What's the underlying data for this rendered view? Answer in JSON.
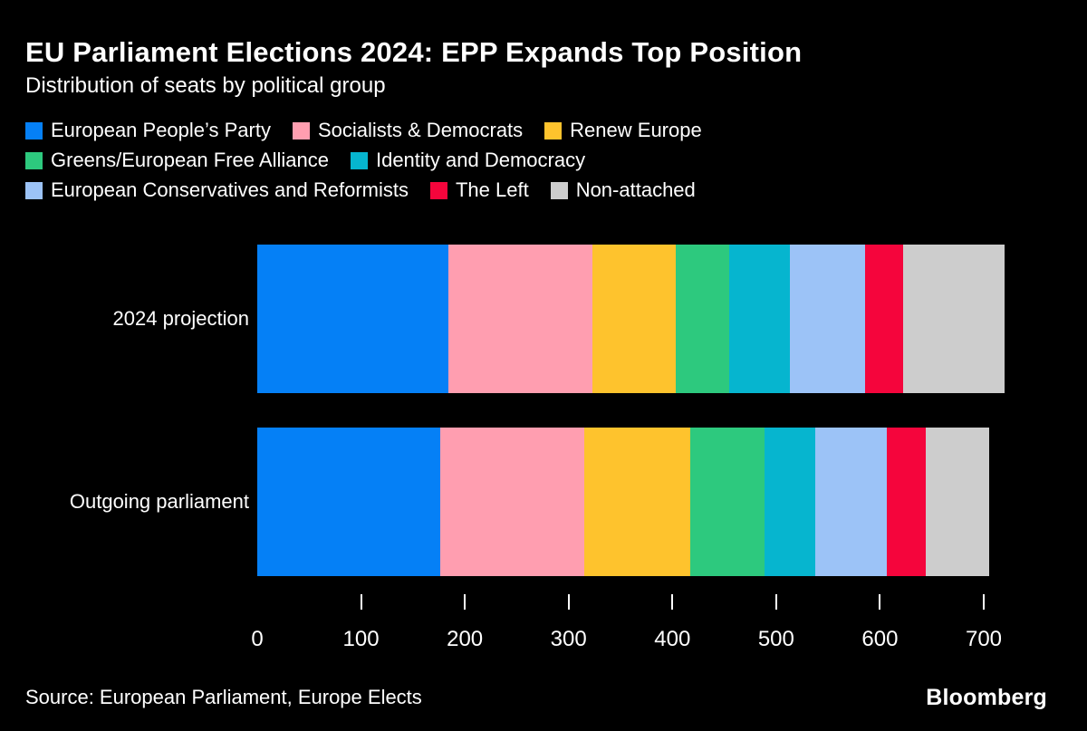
{
  "chart_data": {
    "type": "bar",
    "orientation": "horizontal",
    "stacked": true,
    "title": "EU Parliament Elections 2024: EPP Expands Top Position",
    "subtitle": "Distribution of seats by political group",
    "categories": [
      "2024 projection",
      "Outgoing parliament"
    ],
    "series": [
      {
        "name": "European People’s Party",
        "color": "#0580f6",
        "values": [
          184,
          176
        ]
      },
      {
        "name": "Socialists & Democrats",
        "color": "#ff9eb0",
        "values": [
          139,
          139
        ]
      },
      {
        "name": "Renew Europe",
        "color": "#fec32d",
        "values": [
          80,
          102
        ]
      },
      {
        "name": "Greens/European Free Alliance",
        "color": "#2dc97e",
        "values": [
          52,
          72
        ]
      },
      {
        "name": "Identity and Democracy",
        "color": "#06b5cf",
        "values": [
          58,
          49
        ]
      },
      {
        "name": "European Conservatives and Reformists",
        "color": "#9cc3f7",
        "values": [
          73,
          69
        ]
      },
      {
        "name": "The Left",
        "color": "#f5053c",
        "values": [
          36,
          37
        ]
      },
      {
        "name": "Non-attached",
        "color": "#cdcdcd",
        "values": [
          98,
          61
        ]
      }
    ],
    "totals": [
      720,
      705
    ],
    "x_ticks": [
      0,
      100,
      200,
      300,
      400,
      500,
      600,
      700
    ],
    "xlim": [
      0,
      700
    ],
    "xlabel": "",
    "ylabel": "",
    "legend_position": "top",
    "grid": false
  },
  "footer": {
    "source": "Source: European Parliament, Europe Elects",
    "brand": "Bloomberg"
  },
  "colors": {
    "background": "#000000",
    "text": "#ffffff"
  }
}
